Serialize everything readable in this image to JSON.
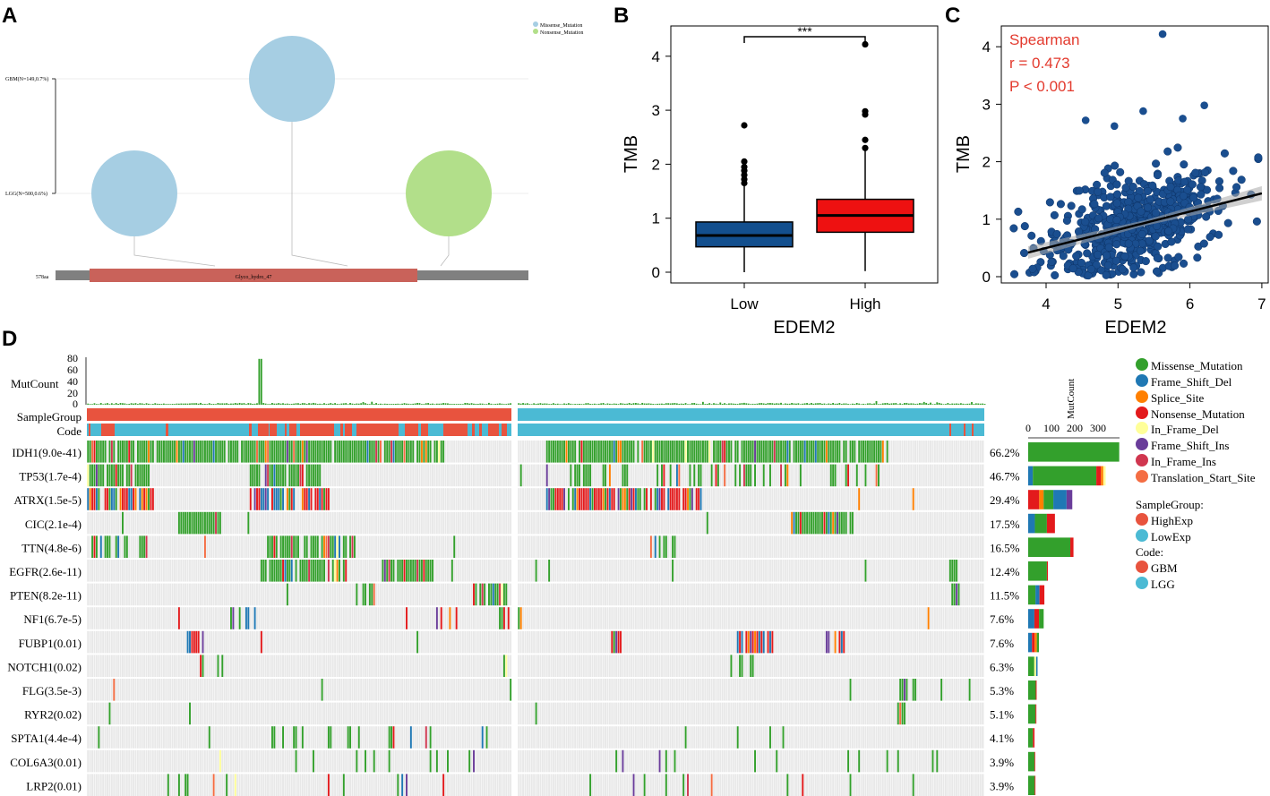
{
  "colors": {
    "missense": "#33a02c",
    "missense_light": "#7fc97f",
    "frame_shift_del": "#1f78b4",
    "splice_site": "#ff7f00",
    "nonsense": "#e31a1c",
    "in_frame_del": "#ffff99",
    "frame_shift_ins": "#6a3d9a",
    "in_frame_ins": "#d0364f",
    "translation_start": "#f46d43",
    "highexp": "#e8533e",
    "lowexp": "#4bbad4",
    "gbm": "#e8533e",
    "lgg": "#4bbad4",
    "box_low": "#134f8e",
    "box_high": "#ee1111",
    "scatter_point": "#1a4e8f",
    "spearman_text": "#e33a2e",
    "lollipop_missense": "#a6cee3",
    "lollipop_nonsense": "#b2df8a",
    "domain": "#c9625a",
    "protein_bar": "#808080",
    "grid_bg": "#e8e8e8"
  },
  "panelA": {
    "letter": "A",
    "legend": [
      "Missense_Mutation",
      "Nonsense_Mutation"
    ],
    "track_labels": [
      "GBM(N=149,0.7%)",
      "LGG(N=500,0.6%)"
    ],
    "protein_length": "578aa",
    "domain_label": "Glyco_hydro_47"
  },
  "chart_data": [
    {
      "type": "box",
      "letter": "B",
      "xlabel": "EDEM2",
      "ylabel": "TMB",
      "categories": [
        "Low",
        "High"
      ],
      "ylim": [
        0,
        4.5
      ],
      "yticks": [
        "0",
        "1",
        "2",
        "3",
        "4"
      ],
      "significance": "***",
      "boxes": [
        {
          "name": "Low",
          "min": 0.0,
          "q1": 0.47,
          "median": 0.68,
          "q3": 0.93,
          "max": 1.62,
          "outliers": [
            1.65,
            1.72,
            1.8,
            1.88,
            1.95,
            2.05,
            2.72
          ]
        },
        {
          "name": "High",
          "min": 0.02,
          "q1": 0.74,
          "median": 1.05,
          "q3": 1.35,
          "max": 2.25,
          "outliers": [
            2.3,
            2.45,
            2.92,
            2.98,
            4.22
          ]
        }
      ]
    },
    {
      "type": "scatter",
      "letter": "C",
      "xlabel": "EDEM2",
      "ylabel": "TMB",
      "xlim": [
        3.5,
        7.0
      ],
      "ylim": [
        0,
        4.3
      ],
      "xticks": [
        "4",
        "5",
        "6",
        "7"
      ],
      "yticks": [
        "0",
        "1",
        "2",
        "3",
        "4"
      ],
      "annotation": [
        "Spearman",
        "r = 0.473",
        "P < 0.001"
      ],
      "fit_line": {
        "x": [
          3.75,
          7.0
        ],
        "y": [
          0.42,
          1.45
        ]
      },
      "n_points_sampled": 600
    },
    {
      "type": "heatmap",
      "letter": "D",
      "title": "oncoplot",
      "mutcount_label": "MutCount",
      "mutcount_ticks": [
        "80",
        "60",
        "40",
        "20",
        "0"
      ],
      "annotation_rows": [
        "SampleGroup",
        "Code"
      ],
      "genes": [
        {
          "name": "IDH1(9.0e-41)",
          "pct": "66.2%",
          "bar": 388
        },
        {
          "name": "TP53(1.7e-4)",
          "pct": "46.7%",
          "bar": 330
        },
        {
          "name": "ATRX(1.5e-5)",
          "pct": "29.4%",
          "bar": 188
        },
        {
          "name": "CIC(2.1e-4)",
          "pct": "17.5%",
          "bar": 114
        },
        {
          "name": "TTN(4.8e-6)",
          "pct": "16.5%",
          "bar": 193
        },
        {
          "name": "EGFR(2.6e-11)",
          "pct": "12.4%",
          "bar": 84
        },
        {
          "name": "PTEN(8.2e-11)",
          "pct": "11.5%",
          "bar": 69
        },
        {
          "name": "NF1(6.7e-5)",
          "pct": "7.6%",
          "bar": 66
        },
        {
          "name": "FUBP1(0.01)",
          "pct": "7.6%",
          "bar": 46
        },
        {
          "name": "NOTCH1(0.02)",
          "pct": "6.3%",
          "bar": 40
        },
        {
          "name": "FLG(3.5e-3)",
          "pct": "5.3%",
          "bar": 36
        },
        {
          "name": "RYR2(0.02)",
          "pct": "5.1%",
          "bar": 35
        },
        {
          "name": "SPTA1(4.4e-4)",
          "pct": "4.1%",
          "bar": 27
        },
        {
          "name": "COL6A3(0.01)",
          "pct": "3.9%",
          "bar": 30
        },
        {
          "name": "LRP2(0.01)",
          "pct": "3.9%",
          "bar": 31
        }
      ],
      "barplot_ticks": [
        "0",
        "100",
        "200",
        "300"
      ],
      "barplot_title": "MutCount",
      "legend_mutations": [
        "Missense_Mutation",
        "Frame_Shift_Del",
        "Splice_Site",
        "Nonsense_Mutation",
        "In_Frame_Del",
        "Frame_Shift_Ins",
        "In_Frame_Ins",
        "Translation_Start_Site"
      ],
      "legend_group_title": "SampleGroup:",
      "legend_groups": [
        "HighExp",
        "LowExp"
      ],
      "legend_code_title": "Code:",
      "legend_codes": [
        "GBM",
        "LGG"
      ]
    }
  ]
}
